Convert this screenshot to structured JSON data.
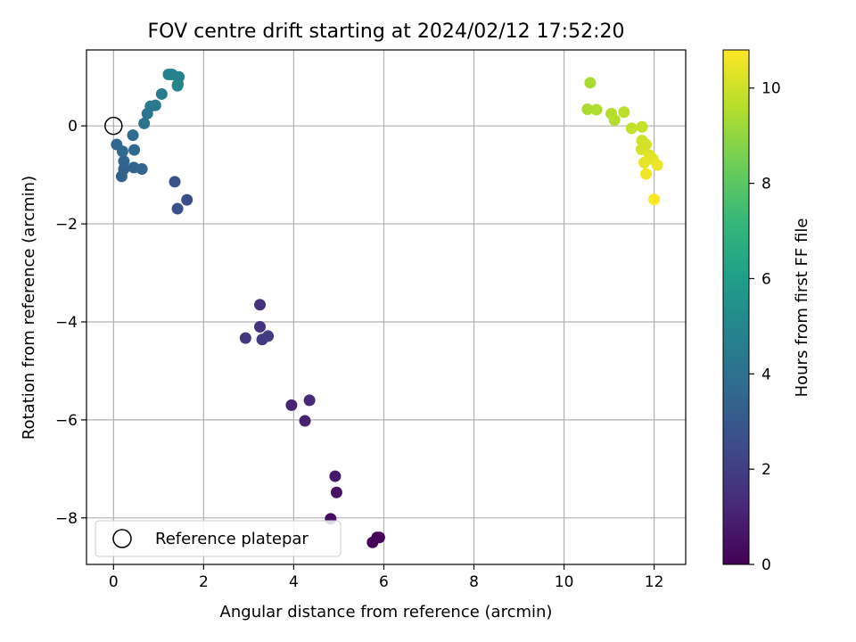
{
  "chart_data": {
    "type": "scatter",
    "title": "FOV centre drift starting at 2024/02/12 17:52:20",
    "xlabel": "Angular distance from reference (arcmin)",
    "ylabel": "Rotation from reference (arcmin)",
    "xlim": [
      -0.6,
      12.7
    ],
    "ylim": [
      -8.95,
      1.55
    ],
    "xticks": [
      "0",
      "2",
      "4",
      "6",
      "8",
      "10",
      "12"
    ],
    "yticks": [
      "0",
      "−2",
      "−4",
      "−6",
      "−8"
    ],
    "grid": true,
    "legend": {
      "placement": "lower-left",
      "entries": [
        "Reference platepar"
      ]
    },
    "reference_point": {
      "x": 0,
      "y": 0
    },
    "colorbar": {
      "label": "Hours from first FF file",
      "colormap": "viridis",
      "range": [
        0,
        10.8
      ],
      "ticks": [
        "0",
        "2",
        "4",
        "6",
        "8",
        "10"
      ]
    },
    "points": [
      {
        "x": 5.75,
        "y": -8.5,
        "h": 0.05
      },
      {
        "x": 5.85,
        "y": -8.4,
        "h": 0.1
      },
      {
        "x": 5.9,
        "y": -8.4,
        "h": 0.15
      },
      {
        "x": 4.82,
        "y": -8.02,
        "h": 0.35
      },
      {
        "x": 4.95,
        "y": -7.48,
        "h": 0.55
      },
      {
        "x": 4.92,
        "y": -7.15,
        "h": 0.7
      },
      {
        "x": 4.25,
        "y": -6.02,
        "h": 1.0
      },
      {
        "x": 3.95,
        "y": -5.7,
        "h": 1.1
      },
      {
        "x": 4.35,
        "y": -5.6,
        "h": 1.2
      },
      {
        "x": 3.25,
        "y": -3.65,
        "h": 1.55
      },
      {
        "x": 3.25,
        "y": -4.1,
        "h": 1.65
      },
      {
        "x": 2.93,
        "y": -4.33,
        "h": 1.75
      },
      {
        "x": 3.3,
        "y": -4.36,
        "h": 1.85
      },
      {
        "x": 3.43,
        "y": -4.29,
        "h": 1.95
      },
      {
        "x": 1.63,
        "y": -1.51,
        "h": 2.6
      },
      {
        "x": 1.42,
        "y": -1.69,
        "h": 2.7
      },
      {
        "x": 1.36,
        "y": -1.14,
        "h": 2.8
      },
      {
        "x": 0.18,
        "y": -1.03,
        "h": 3.3
      },
      {
        "x": 0.23,
        "y": -0.88,
        "h": 3.35
      },
      {
        "x": 0.45,
        "y": -0.85,
        "h": 3.4
      },
      {
        "x": 0.63,
        "y": -0.88,
        "h": 3.45
      },
      {
        "x": 0.23,
        "y": -0.72,
        "h": 3.5
      },
      {
        "x": 0.07,
        "y": -0.38,
        "h": 3.6
      },
      {
        "x": 0.2,
        "y": -0.52,
        "h": 3.65
      },
      {
        "x": 0.46,
        "y": -0.49,
        "h": 3.7
      },
      {
        "x": 0.43,
        "y": -0.19,
        "h": 3.8
      },
      {
        "x": 0.68,
        "y": 0.05,
        "h": 4.1
      },
      {
        "x": 0.75,
        "y": 0.25,
        "h": 4.2
      },
      {
        "x": 0.82,
        "y": 0.4,
        "h": 4.3
      },
      {
        "x": 0.93,
        "y": 0.42,
        "h": 4.4
      },
      {
        "x": 1.07,
        "y": 0.65,
        "h": 4.5
      },
      {
        "x": 1.22,
        "y": 1.05,
        "h": 4.7
      },
      {
        "x": 1.3,
        "y": 1.05,
        "h": 4.75
      },
      {
        "x": 1.45,
        "y": 1.0,
        "h": 4.8
      },
      {
        "x": 1.43,
        "y": 0.85,
        "h": 4.85
      },
      {
        "x": 1.42,
        "y": 0.82,
        "h": 4.9
      },
      {
        "x": 10.58,
        "y": 0.88,
        "h": 9.4
      },
      {
        "x": 10.52,
        "y": 0.34,
        "h": 9.45
      },
      {
        "x": 10.72,
        "y": 0.33,
        "h": 9.5
      },
      {
        "x": 11.05,
        "y": 0.25,
        "h": 9.55
      },
      {
        "x": 11.12,
        "y": 0.12,
        "h": 9.6
      },
      {
        "x": 11.33,
        "y": 0.28,
        "h": 9.7
      },
      {
        "x": 11.5,
        "y": -0.05,
        "h": 9.8
      },
      {
        "x": 11.73,
        "y": -0.02,
        "h": 9.9
      },
      {
        "x": 11.73,
        "y": -0.3,
        "h": 10.0
      },
      {
        "x": 11.82,
        "y": -0.38,
        "h": 10.1
      },
      {
        "x": 11.72,
        "y": -0.48,
        "h": 10.15
      },
      {
        "x": 11.9,
        "y": -0.6,
        "h": 10.25
      },
      {
        "x": 11.97,
        "y": -0.68,
        "h": 10.35
      },
      {
        "x": 11.78,
        "y": -0.75,
        "h": 10.4
      },
      {
        "x": 12.07,
        "y": -0.8,
        "h": 10.5
      },
      {
        "x": 11.82,
        "y": -0.98,
        "h": 10.6
      },
      {
        "x": 12.0,
        "y": -1.5,
        "h": 10.75
      }
    ]
  }
}
